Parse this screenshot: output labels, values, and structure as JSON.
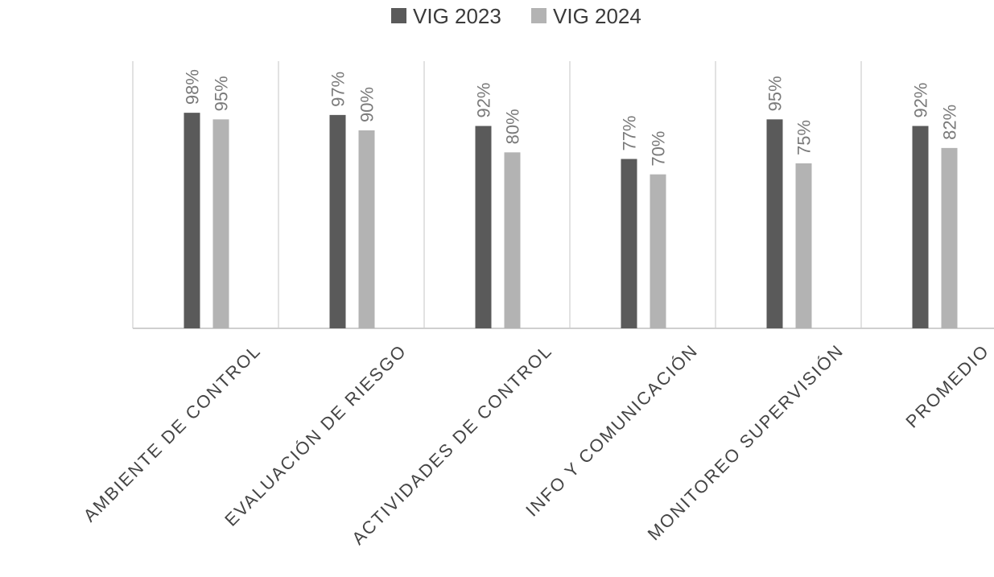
{
  "chart_data": {
    "type": "bar",
    "categories": [
      "AMBIENTE DE CONTROL",
      "EVALUACIÓN DE RIESGO",
      "ACTIVIDADES DE CONTROL",
      "INFO Y COMUNICACIÓN",
      "MONITOREO SUPERVISIÓN",
      "PROMEDIO"
    ],
    "series": [
      {
        "name": "VIG 2023",
        "color": "#5a5a5a",
        "values": [
          98,
          97,
          92,
          77,
          95,
          92
        ],
        "labels": [
          "98%",
          "97%",
          "92%",
          "77%",
          "95%",
          "92%"
        ]
      },
      {
        "name": "VIG 2024",
        "color": "#b3b3b3",
        "values": [
          95,
          90,
          80,
          70,
          75,
          82
        ],
        "labels": [
          "95%",
          "90%",
          "80%",
          "70%",
          "75%",
          "82%"
        ]
      }
    ],
    "title": "",
    "xlabel": "",
    "ylabel": "",
    "ylim": [
      0,
      120
    ],
    "legend_position": "top-center",
    "grid": "vertical separators between categories",
    "colors": {
      "axis": "#cfcfcf",
      "separator": "#d9d9d9",
      "data_label": "#7a7a7a"
    }
  }
}
